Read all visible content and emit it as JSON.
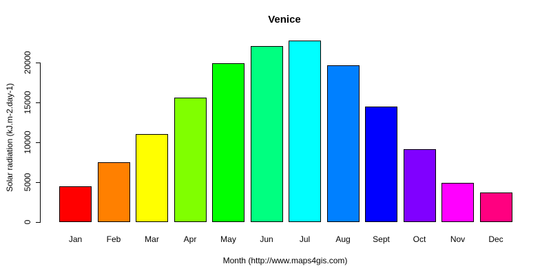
{
  "chart_data": {
    "type": "bar",
    "title": "Venice",
    "xlabel": "Month (http://www.maps4gis.com)",
    "ylabel": "Solar radiation (kJ.m-2.day-1)",
    "categories": [
      "Jan",
      "Feb",
      "Mar",
      "Apr",
      "May",
      "Jun",
      "Jul",
      "Aug",
      "Sept",
      "Oct",
      "Nov",
      "Dec"
    ],
    "values": [
      4500,
      7500,
      11000,
      15600,
      19900,
      22100,
      22800,
      19650,
      14500,
      9100,
      4900,
      3700
    ],
    "bar_colors": [
      "#FF0000",
      "#FF8000",
      "#FFFF00",
      "#80FF00",
      "#00FF00",
      "#00FF80",
      "#00FFFF",
      "#0080FF",
      "#0000FF",
      "#8000FF",
      "#FF00FF",
      "#FF0080"
    ],
    "bar_border_color": "#000000",
    "yticks": [
      0,
      5000,
      10000,
      15000,
      20000
    ],
    "ylim": [
      0,
      23000
    ],
    "grid": false,
    "legend": "none",
    "background_color": "#FFFFFF",
    "text_color": "#000000"
  }
}
